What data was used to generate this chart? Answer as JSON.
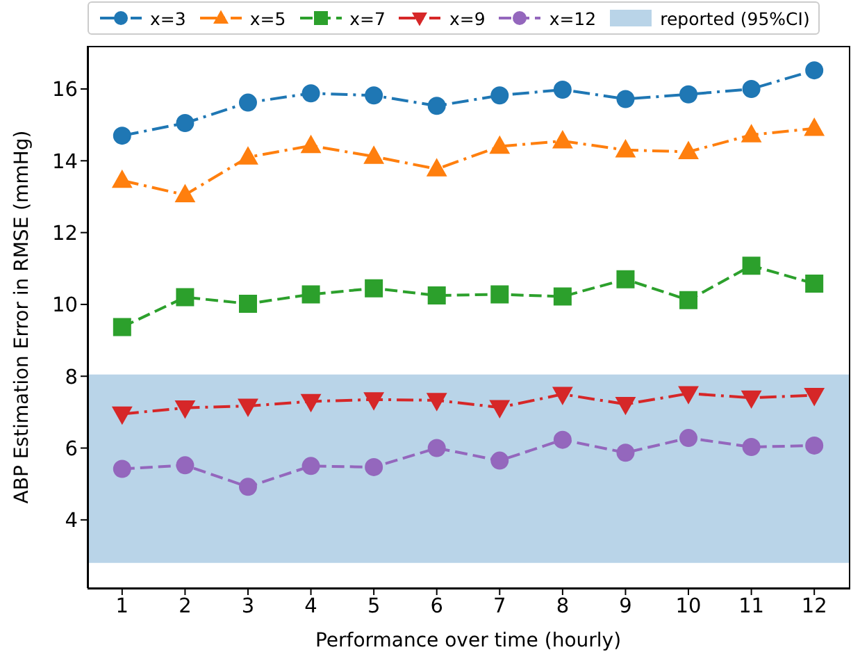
{
  "chart_data": {
    "type": "line",
    "xlabel": "Performance over time (hourly)",
    "ylabel": "ABP Estimation Error in RMSE (mmHg)",
    "x": [
      1,
      2,
      3,
      4,
      5,
      6,
      7,
      8,
      9,
      10,
      11,
      12
    ],
    "series": [
      {
        "name": "x=3",
        "color": "#1f77b4",
        "marker": "circle",
        "line_style": "dashdot",
        "values": [
          14.7,
          15.05,
          15.62,
          15.88,
          15.82,
          15.53,
          15.82,
          15.98,
          15.72,
          15.85,
          16.0,
          16.52
        ]
      },
      {
        "name": "x=5",
        "color": "#ff7f0e",
        "marker": "triangle",
        "line_style": "dashdot",
        "values": [
          13.45,
          13.05,
          14.1,
          14.42,
          14.12,
          13.77,
          14.4,
          14.55,
          14.3,
          14.25,
          14.72,
          14.9
        ]
      },
      {
        "name": "x=7",
        "color": "#2ca02c",
        "marker": "square",
        "line_style": "dashed",
        "values": [
          9.37,
          10.2,
          10.02,
          10.28,
          10.45,
          10.25,
          10.28,
          10.22,
          10.7,
          10.12,
          11.08,
          10.58
        ]
      },
      {
        "name": "x=9",
        "color": "#d62728",
        "marker": "triangle-down",
        "line_style": "dashdot",
        "values": [
          6.95,
          7.12,
          7.17,
          7.3,
          7.35,
          7.33,
          7.13,
          7.5,
          7.22,
          7.52,
          7.4,
          7.47
        ]
      },
      {
        "name": "x=12",
        "color": "#9467bd",
        "marker": "circle",
        "line_style": "dashed",
        "values": [
          5.42,
          5.52,
          4.92,
          5.5,
          5.47,
          6.0,
          5.65,
          6.23,
          5.87,
          6.28,
          6.03,
          6.07
        ]
      }
    ],
    "bands": [
      {
        "axis": "y",
        "from": 2.8,
        "to": 8.05,
        "label": "reported (95%CI)",
        "color": "#b9d4e8"
      }
    ],
    "xlim": [
      0.45,
      12.55
    ],
    "xticks": [
      1,
      2,
      3,
      4,
      5,
      6,
      7,
      8,
      9,
      10,
      11,
      12
    ],
    "ylim": [
      2.1,
      17.2
    ],
    "yticks": [
      4,
      6,
      8,
      10,
      12,
      14,
      16
    ],
    "legend": "top"
  }
}
